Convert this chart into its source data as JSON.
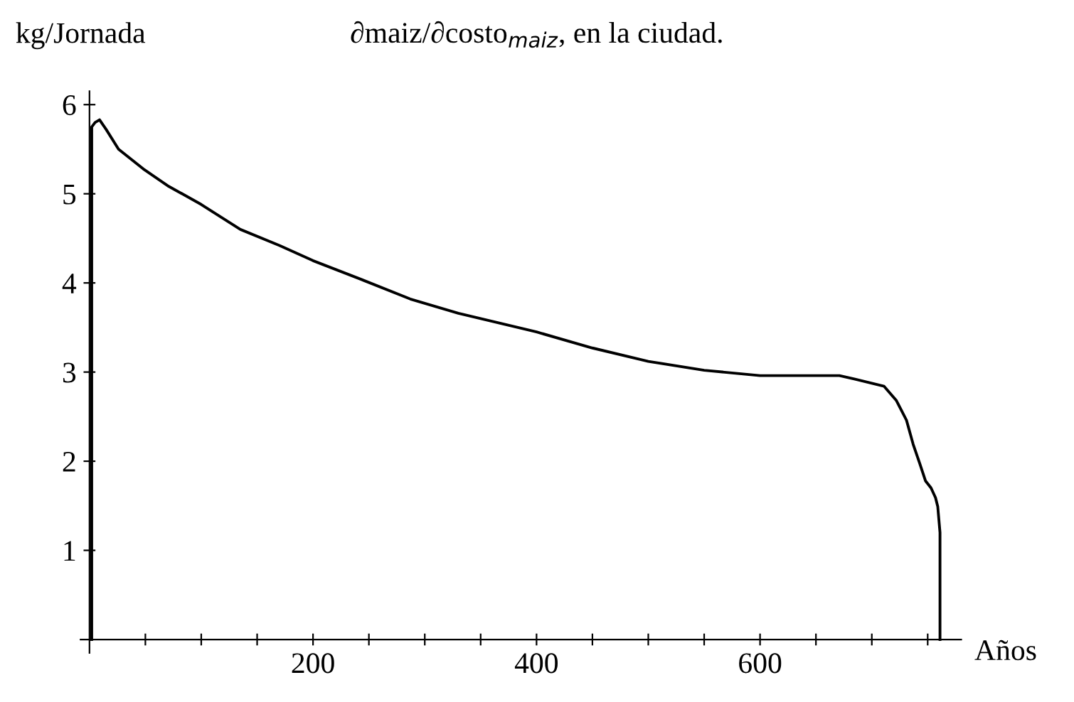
{
  "chart_data": {
    "type": "line",
    "title": "∂maiz/∂costo$_{maiz}$, en la ciudad.",
    "xlabel": "Años",
    "ylabel": "kg/Jornada",
    "series": [
      {
        "color": "#000000",
        "x": [
          2,
          2,
          5,
          9,
          15,
          26,
          48,
          70,
          100,
          135,
          170,
          200,
          243,
          287,
          330,
          400,
          450,
          500,
          550,
          600,
          627,
          671,
          685,
          711,
          722,
          731,
          737,
          743,
          748,
          753,
          757,
          759,
          761,
          761
        ],
        "values": [
          0,
          5.75,
          5.8,
          5.83,
          5.72,
          5.5,
          5.28,
          5.09,
          4.88,
          4.6,
          4.42,
          4.25,
          4.04,
          3.82,
          3.66,
          3.45,
          3.27,
          3.12,
          3.02,
          2.96,
          2.96,
          2.96,
          2.92,
          2.84,
          2.68,
          2.46,
          2.19,
          1.97,
          1.78,
          1.7,
          1.59,
          1.49,
          1.2,
          0
        ]
      }
    ],
    "xlim": [
      -8,
      780
    ],
    "ylim": [
      -0.15,
      6.15
    ],
    "xticks": [
      {
        "value": 50,
        "label": null
      },
      {
        "value": 100,
        "label": null
      },
      {
        "value": 150,
        "label": null
      },
      200,
      {
        "value": 250,
        "label": null
      },
      {
        "value": 300,
        "label": null
      },
      {
        "value": 350,
        "label": null
      },
      400,
      {
        "value": 450,
        "label": null
      },
      {
        "value": 500,
        "label": null
      },
      {
        "value": 550,
        "label": null
      },
      600,
      {
        "value": 650,
        "label": null
      },
      {
        "value": 700,
        "label": null
      },
      {
        "value": 750,
        "label": null
      }
    ],
    "yticks": [
      1,
      2,
      3,
      4,
      5,
      6
    ],
    "marker": "none",
    "line_style": "solid"
  }
}
